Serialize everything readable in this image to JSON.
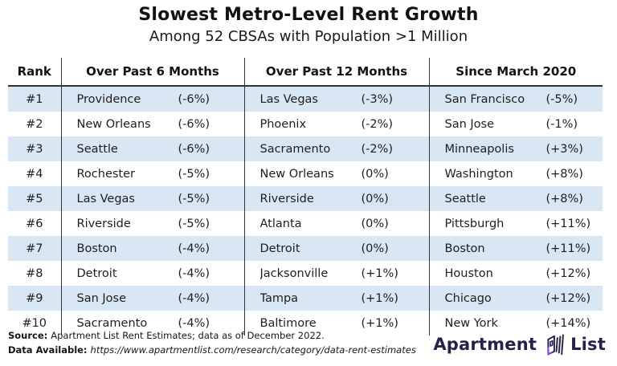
{
  "title": "Slowest Metro-Level Rent Growth",
  "subtitle": "Among 52 CBSAs with Population >1 Million",
  "chart_data": {
    "type": "table",
    "title": "Slowest Metro-Level Rent Growth",
    "subtitle": "Among 52 CBSAs with Population >1 Million",
    "columns": [
      "Rank",
      "Over Past 6 Months",
      "Over Past 12 Months",
      "Since March 2020"
    ],
    "rows": [
      {
        "rank": "#1",
        "past6": {
          "city": "Providence",
          "label": "(-6%)",
          "pct": -6
        },
        "past12": {
          "city": "Las Vegas",
          "label": "(-3%)",
          "pct": -3
        },
        "since2020": {
          "city": "San Francisco",
          "label": "(-5%)",
          "pct": -5
        }
      },
      {
        "rank": "#2",
        "past6": {
          "city": "New Orleans",
          "label": "(-6%)",
          "pct": -6
        },
        "past12": {
          "city": "Phoenix",
          "label": "(-2%)",
          "pct": -2
        },
        "since2020": {
          "city": "San Jose",
          "label": "(-1%)",
          "pct": -1
        }
      },
      {
        "rank": "#3",
        "past6": {
          "city": "Seattle",
          "label": "(-6%)",
          "pct": -6
        },
        "past12": {
          "city": "Sacramento",
          "label": "(-2%)",
          "pct": -2
        },
        "since2020": {
          "city": "Minneapolis",
          "label": "(+3%)",
          "pct": 3
        }
      },
      {
        "rank": "#4",
        "past6": {
          "city": "Rochester",
          "label": "(-5%)",
          "pct": -5
        },
        "past12": {
          "city": "New Orleans",
          "label": "(0%)",
          "pct": 0
        },
        "since2020": {
          "city": "Washington",
          "label": "(+8%)",
          "pct": 8
        }
      },
      {
        "rank": "#5",
        "past6": {
          "city": "Las Vegas",
          "label": "(-5%)",
          "pct": -5
        },
        "past12": {
          "city": "Riverside",
          "label": "(0%)",
          "pct": 0
        },
        "since2020": {
          "city": "Seattle",
          "label": "(+8%)",
          "pct": 8
        }
      },
      {
        "rank": "#6",
        "past6": {
          "city": "Riverside",
          "label": "(-5%)",
          "pct": -5
        },
        "past12": {
          "city": "Atlanta",
          "label": "(0%)",
          "pct": 0
        },
        "since2020": {
          "city": "Pittsburgh",
          "label": "(+11%)",
          "pct": 11
        }
      },
      {
        "rank": "#7",
        "past6": {
          "city": "Boston",
          "label": "(-4%)",
          "pct": -4
        },
        "past12": {
          "city": "Detroit",
          "label": "(0%)",
          "pct": 0
        },
        "since2020": {
          "city": "Boston",
          "label": "(+11%)",
          "pct": 11
        }
      },
      {
        "rank": "#8",
        "past6": {
          "city": "Detroit",
          "label": "(-4%)",
          "pct": -4
        },
        "past12": {
          "city": "Jacksonville",
          "label": "(+1%)",
          "pct": 1
        },
        "since2020": {
          "city": "Houston",
          "label": "(+12%)",
          "pct": 12
        }
      },
      {
        "rank": "#9",
        "past6": {
          "city": "San Jose",
          "label": "(-4%)",
          "pct": -4
        },
        "past12": {
          "city": "Tampa",
          "label": "(+1%)",
          "pct": 1
        },
        "since2020": {
          "city": "Chicago",
          "label": "(+12%)",
          "pct": 12
        }
      },
      {
        "rank": "#10",
        "past6": {
          "city": "Sacramento",
          "label": "(-4%)",
          "pct": -4
        },
        "past12": {
          "city": "Baltimore",
          "label": "(+1%)",
          "pct": 1
        },
        "since2020": {
          "city": "New York",
          "label": "(+14%)",
          "pct": 14
        }
      }
    ]
  },
  "footer": {
    "source_label": "Source:",
    "source_text": "Apartment List Rent Estimates; data as of December 2022.",
    "data_label": "Data Available:",
    "data_url": "https://www.apartmentlist.com/research/category/data-rent-estimates"
  },
  "logo": {
    "word1": "Apartment",
    "word2": "List"
  },
  "colors": {
    "row_stripe": "#d9e6f3",
    "table_rule": "#333333",
    "logo_navy": "#24224a",
    "logo_purple": "#8a4fd6"
  }
}
